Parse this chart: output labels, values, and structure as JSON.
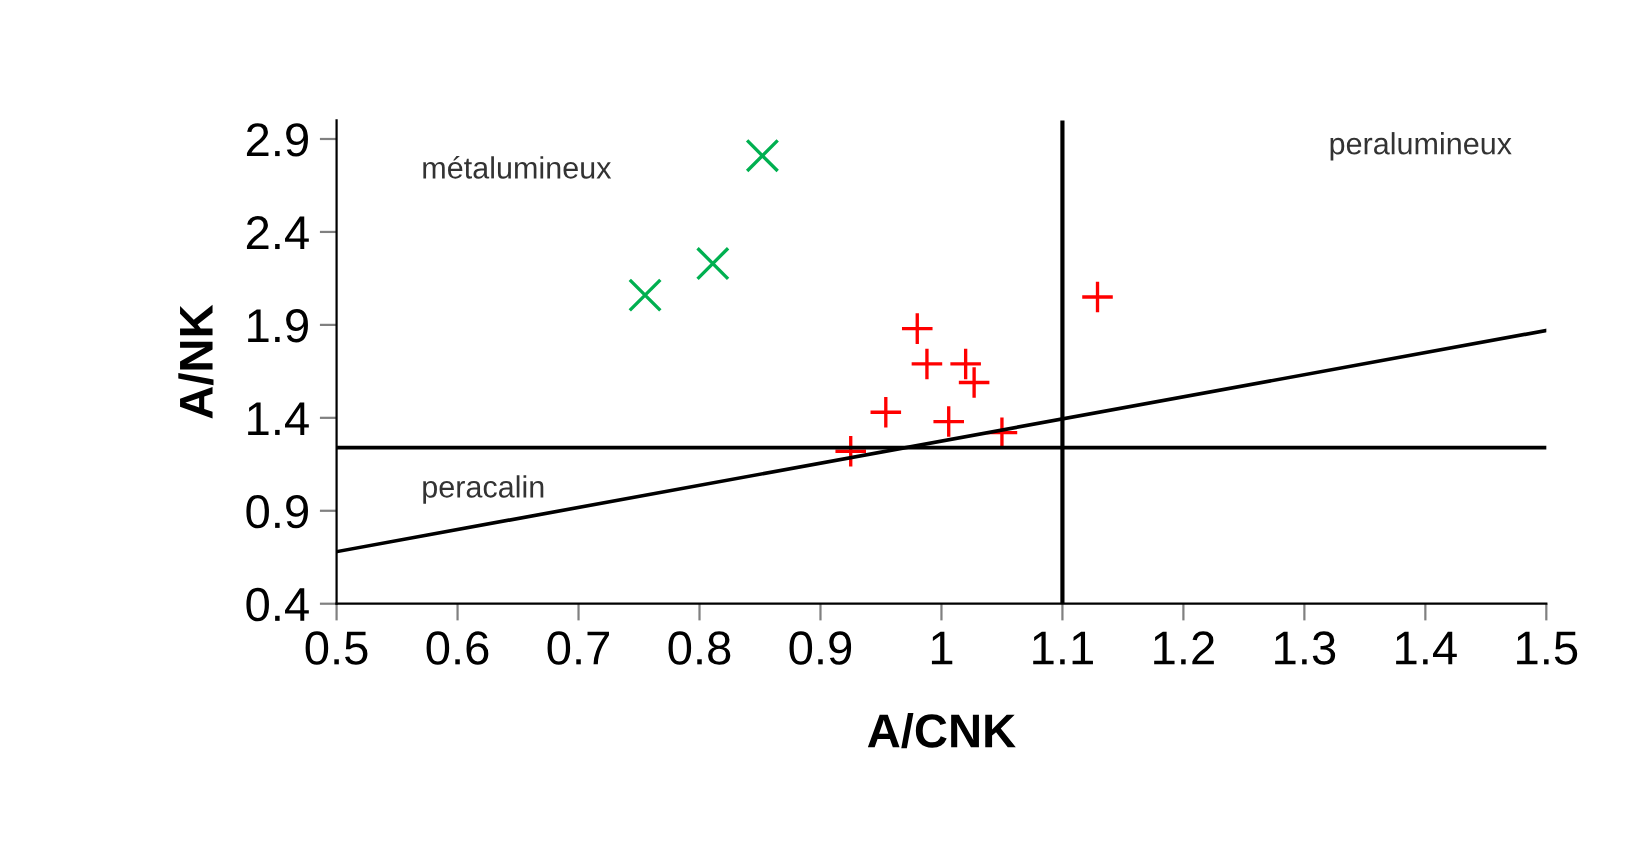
{
  "chart_data": {
    "type": "scatter",
    "xlabel": "A/CNK",
    "ylabel": "A/NK",
    "xlim": [
      0.5,
      1.5
    ],
    "xticks": [
      0.5,
      0.6,
      0.7,
      0.8,
      0.9,
      {
        "value": 1.0,
        "label": "1"
      },
      1.1,
      1.2,
      1.3,
      1.4,
      1.5
    ],
    "ylim": [
      0.4,
      3.0
    ],
    "yticks": [
      0.4,
      0.9,
      1.4,
      1.9,
      2.4,
      2.9
    ],
    "grid": false,
    "legend": false,
    "series": [
      {
        "color": "#00b050",
        "marker": "x",
        "x": [
          0.852,
          0.811,
          0.755
        ],
        "values": [
          2.81,
          2.23,
          2.06
        ]
      },
      {
        "color": "#ff0000",
        "marker": "cross",
        "x": [
          1.129,
          0.98,
          0.988,
          1.02,
          1.027,
          0.954,
          1.006,
          1.05,
          0.925
        ],
        "values": [
          2.05,
          1.88,
          1.69,
          1.69,
          1.59,
          1.43,
          1.38,
          1.32,
          1.22
        ]
      },
      {
        "type": "line",
        "color": "#000000",
        "marker": "none",
        "x": [
          0.5,
          1.5
        ],
        "values": [
          0.68,
          1.87
        ]
      }
    ],
    "ref_lines": [
      {
        "axis": "y",
        "value": 1.24,
        "color": "#000000"
      },
      {
        "axis": "x",
        "value": 1.1,
        "color": "#000000"
      }
    ],
    "annotations": [
      "métalumineux",
      "peralumineux",
      "peracalin"
    ]
  }
}
